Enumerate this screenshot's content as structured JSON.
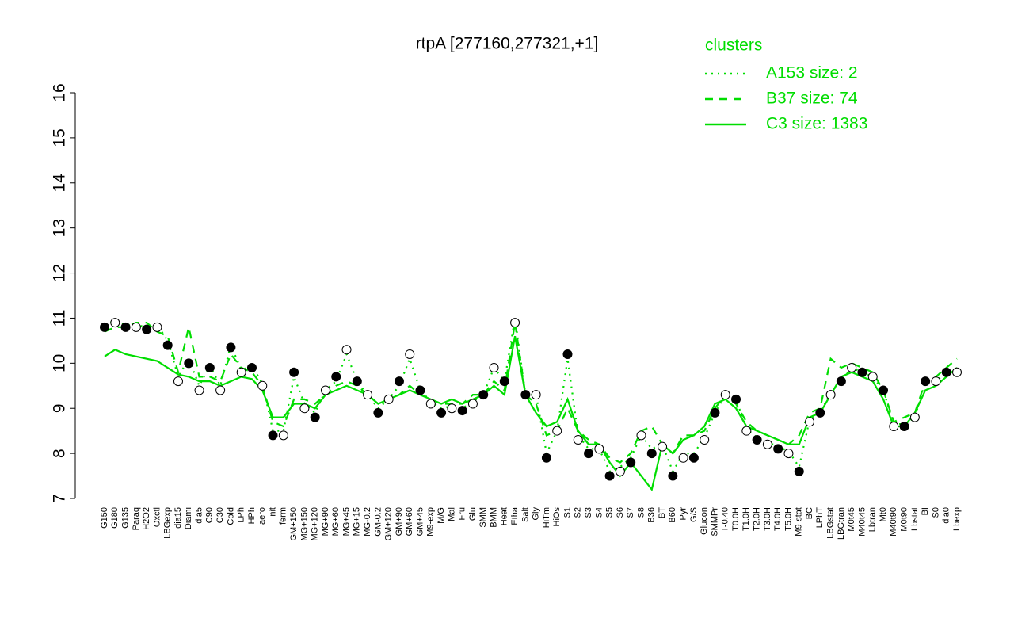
{
  "chart_data": {
    "type": "line",
    "title": "rtpA [277160,277321,+1]",
    "legend_title": "clusters",
    "legend_position": "top-right",
    "ylim": [
      7,
      16
    ],
    "yticks": [
      7,
      8,
      9,
      10,
      11,
      12,
      13,
      14,
      15,
      16
    ],
    "categories": [
      "G150",
      "G180",
      "G135",
      "Paraq",
      "H2O2",
      "Oxctl",
      "LBGexp",
      "dia15",
      "Diami",
      "dia5",
      "C90",
      "C30",
      "Cold",
      "LPh",
      "HPh",
      "aero",
      "nit",
      "ferm",
      "GM+150",
      "MG+150",
      "MG+120",
      "MG+90",
      "MG+60",
      "MG+45",
      "MG+15",
      "MG-0.2",
      "GM-0.2",
      "GM+120",
      "GM+90",
      "GM+60",
      "GM+45",
      "M9-exp",
      "M/G",
      "Mal",
      "Fru",
      "Glu",
      "SMM",
      "BMM",
      "Heat",
      "Etha",
      "Salt",
      "Gly",
      "HiTm",
      "HiOs",
      "S1",
      "S2",
      "S3",
      "S4",
      "S5",
      "S6",
      "S7",
      "S8",
      "B36",
      "BT",
      "B60",
      "Pyr",
      "G/S",
      "Glucon",
      "SMMPr",
      "T-0.40",
      "T0.0H",
      "T1.0H",
      "T2.0H",
      "T3.0H",
      "T4.0H",
      "T5.0H",
      "M9-stat",
      "BC",
      "LPhT",
      "LBGstat",
      "LBGtran",
      "M0t45",
      "M40t45",
      "Lbtran",
      "Mt0",
      "M40t90",
      "M0t90",
      "Lbstat",
      "BI",
      "S0",
      "dia0",
      "Lbexp"
    ],
    "values": [
      10.8,
      10.9,
      10.8,
      10.8,
      10.75,
      10.8,
      10.4,
      9.6,
      10.0,
      9.4,
      9.9,
      9.4,
      10.35,
      9.8,
      9.9,
      9.5,
      8.4,
      8.4,
      9.8,
      9.0,
      8.8,
      9.4,
      9.7,
      10.3,
      9.6,
      9.3,
      8.9,
      9.2,
      9.6,
      10.2,
      9.4,
      9.1,
      8.9,
      9.0,
      8.95,
      9.1,
      9.3,
      9.9,
      9.6,
      10.9,
      9.3,
      9.3,
      7.9,
      8.5,
      10.2,
      8.3,
      8.0,
      8.1,
      7.5,
      7.6,
      7.8,
      8.4,
      8.0,
      8.15,
      7.5,
      7.9,
      7.9,
      8.3,
      8.9,
      9.3,
      9.2,
      8.5,
      8.3,
      8.2,
      8.1,
      8.0,
      7.6,
      8.7,
      8.9,
      9.3,
      9.6,
      9.9,
      9.8,
      9.7,
      9.4,
      8.6,
      8.6,
      8.8,
      9.6,
      9.6,
      9.8,
      9.8
    ],
    "point_colors": [
      "#000000",
      "#ffffff"
    ],
    "series": [
      {
        "name": "A153 size: 2",
        "color": "#00dd00",
        "dash": "dotted",
        "values": [
          10.85,
          10.95,
          10.85,
          10.85,
          10.8,
          10.85,
          10.5,
          9.7,
          10.1,
          9.5,
          9.95,
          9.5,
          10.4,
          9.85,
          9.95,
          9.55,
          8.5,
          8.5,
          9.7,
          9.1,
          8.9,
          9.4,
          9.6,
          10.2,
          9.6,
          9.3,
          9.0,
          9.2,
          9.5,
          10.1,
          9.4,
          9.15,
          9.0,
          9.05,
          9.0,
          9.15,
          9.3,
          9.9,
          9.6,
          11.0,
          9.3,
          9.3,
          8.0,
          8.5,
          10.1,
          8.4,
          8.1,
          8.1,
          7.6,
          7.7,
          7.9,
          8.4,
          8.1,
          8.2,
          7.6,
          8.0,
          8.0,
          8.35,
          8.9,
          9.3,
          9.2,
          8.55,
          8.35,
          8.25,
          8.15,
          8.05,
          7.7,
          8.75,
          8.9,
          9.35,
          9.6,
          9.9,
          9.8,
          9.7,
          9.4,
          8.65,
          8.65,
          8.8,
          9.6,
          9.6,
          9.8,
          9.85
        ]
      },
      {
        "name": "B37 size: 74",
        "color": "#00dd00",
        "dash": "dashed",
        "values": [
          10.7,
          10.8,
          10.8,
          10.9,
          10.9,
          10.7,
          10.6,
          9.8,
          10.8,
          9.7,
          9.7,
          9.6,
          10.2,
          9.9,
          9.8,
          9.5,
          8.7,
          8.6,
          9.2,
          9.2,
          9.1,
          9.3,
          9.5,
          9.6,
          9.5,
          9.3,
          9.1,
          9.2,
          9.3,
          9.5,
          9.3,
          9.2,
          9.1,
          9.1,
          9.1,
          9.3,
          9.3,
          9.6,
          9.4,
          10.9,
          9.3,
          9.1,
          8.4,
          8.5,
          9.0,
          8.5,
          8.3,
          8.2,
          7.9,
          7.8,
          8.0,
          8.5,
          8.6,
          8.2,
          8.0,
          8.4,
          8.4,
          8.5,
          9.0,
          9.3,
          9.1,
          8.7,
          8.5,
          8.4,
          8.3,
          8.2,
          8.4,
          8.9,
          9.0,
          10.1,
          9.9,
          10.0,
          9.9,
          9.8,
          9.4,
          8.7,
          8.8,
          8.9,
          9.6,
          9.7,
          9.9,
          10.1
        ]
      },
      {
        "name": "C3 size: 1383",
        "color": "#00dd00",
        "dash": "solid",
        "values": [
          10.15,
          10.3,
          10.2,
          10.15,
          10.1,
          10.05,
          9.9,
          9.75,
          9.7,
          9.6,
          9.6,
          9.5,
          9.6,
          9.7,
          9.65,
          9.4,
          8.8,
          8.8,
          9.1,
          9.1,
          9.0,
          9.3,
          9.4,
          9.5,
          9.4,
          9.3,
          9.1,
          9.2,
          9.3,
          9.4,
          9.3,
          9.2,
          9.1,
          9.2,
          9.1,
          9.2,
          9.3,
          9.5,
          9.3,
          10.6,
          9.3,
          8.9,
          8.6,
          8.7,
          9.2,
          8.5,
          8.2,
          8.2,
          7.8,
          7.5,
          7.8,
          7.5,
          7.2,
          8.2,
          8.0,
          8.3,
          8.4,
          8.6,
          9.1,
          9.2,
          9.0,
          8.6,
          8.5,
          8.4,
          8.3,
          8.2,
          8.2,
          8.8,
          8.9,
          9.3,
          9.7,
          9.8,
          9.7,
          9.6,
          9.2,
          8.6,
          8.6,
          8.9,
          9.4,
          9.5,
          9.7,
          9.9
        ]
      }
    ]
  }
}
